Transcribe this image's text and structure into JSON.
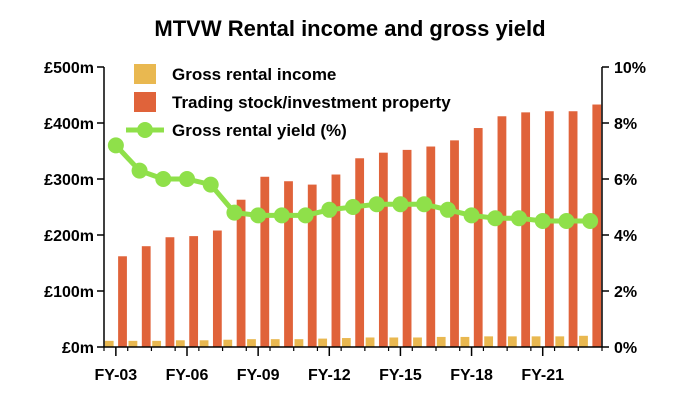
{
  "chart_data": {
    "type": "bar",
    "title": "MTVW Rental income and gross yield",
    "xlabel": "",
    "ylabel_left": "",
    "ylabel_right": "",
    "categories": [
      "FY-03",
      "FY-04",
      "FY-05",
      "FY-06",
      "FY-07",
      "FY-08",
      "FY-09",
      "FY-10",
      "FY-11",
      "FY-12",
      "FY-13",
      "FY-14",
      "FY-15",
      "FY-16",
      "FY-17",
      "FY-18",
      "FY-19",
      "FY-20",
      "FY-21",
      "FY-22",
      "FY-23"
    ],
    "x_tick_labels": [
      "FY-03",
      "FY-06",
      "FY-09",
      "FY-12",
      "FY-15",
      "FY-18",
      "FY-21"
    ],
    "ylim_left": [
      0,
      500
    ],
    "ylim_right": [
      0,
      10
    ],
    "y_ticks_left": [
      "£0m",
      "£100m",
      "£200m",
      "£300m",
      "£400m",
      "£500m"
    ],
    "y_ticks_right": [
      "0%",
      "2%",
      "4%",
      "6%",
      "8%",
      "10%"
    ],
    "legend_position": "top-left",
    "grid": false,
    "series": [
      {
        "name": "Gross rental income",
        "kind": "bar",
        "axis": "left",
        "color": "#E9B850",
        "values": [
          11,
          11,
          11,
          12,
          12,
          13,
          14,
          14,
          14,
          15,
          16,
          17,
          17,
          17,
          18,
          18,
          19,
          19,
          19,
          19,
          20
        ]
      },
      {
        "name": "Trading stock/investment property",
        "kind": "bar",
        "axis": "left",
        "color": "#E0633A",
        "values": [
          162,
          180,
          196,
          198,
          208,
          263,
          304,
          296,
          290,
          308,
          337,
          347,
          352,
          358,
          369,
          391,
          412,
          419,
          421,
          421,
          433
        ]
      },
      {
        "name": "Gross rental yield (%)",
        "kind": "line",
        "axis": "right",
        "color": "#8FE04A",
        "values": [
          7.2,
          6.3,
          6.0,
          6.0,
          5.8,
          4.8,
          4.7,
          4.7,
          4.7,
          4.9,
          5.0,
          5.1,
          5.1,
          5.1,
          4.9,
          4.7,
          4.6,
          4.6,
          4.5,
          4.5,
          4.5
        ]
      }
    ]
  }
}
